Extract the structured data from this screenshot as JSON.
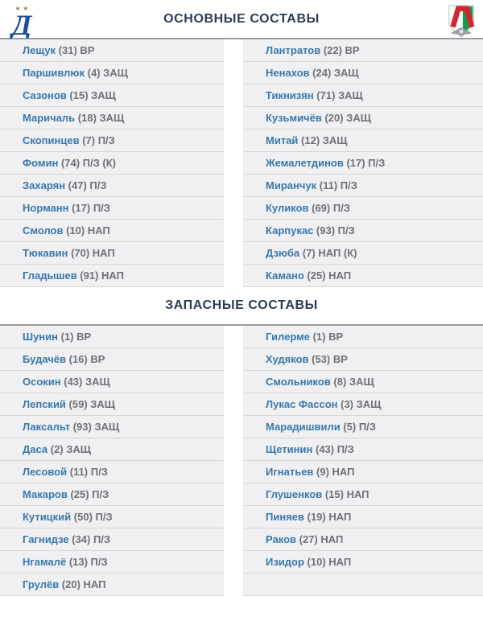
{
  "teams": {
    "home_logo_icon": "dynamo-moscow-logo",
    "away_logo_icon": "lokomotiv-moscow-logo"
  },
  "colors": {
    "player_name_blue": "#3878ad",
    "player_meta_gray": "#6e7176",
    "section_title_navy": "#2c3b53",
    "row_background": "#f0f0f2",
    "row_separator": "#d7d7da",
    "section_border": "#9b9b9e",
    "dynamo_blue": "#1d4e9b",
    "dynamo_star_gold": "#a5854f",
    "loko_red": "#d22730",
    "loko_green": "#149b4e",
    "loko_gray": "#9aa0a6"
  },
  "sections": [
    {
      "title": "ОСНОВНЫЕ СОСТАВЫ",
      "left_players": [
        {
          "name": "Лещук",
          "meta": "(31) ВР"
        },
        {
          "name": "Паршивлюк",
          "meta": "(4) ЗАЩ"
        },
        {
          "name": "Сазонов",
          "meta": "(15) ЗАЩ"
        },
        {
          "name": "Маричаль",
          "meta": "(18) ЗАЩ"
        },
        {
          "name": "Скопинцев",
          "meta": "(7) П/З"
        },
        {
          "name": "Фомин",
          "meta": "(74) П/З (К)"
        },
        {
          "name": "Захарян",
          "meta": "(47) П/З"
        },
        {
          "name": "Норманн",
          "meta": "(17) П/З"
        },
        {
          "name": "Смолов",
          "meta": "(10) НАП"
        },
        {
          "name": "Тюкавин",
          "meta": "(70) НАП"
        },
        {
          "name": "Гладышев",
          "meta": "(91) НАП"
        }
      ],
      "right_players": [
        {
          "name": "Лантратов",
          "meta": "(22) ВР"
        },
        {
          "name": "Ненахов",
          "meta": "(24) ЗАЩ"
        },
        {
          "name": "Тикнизян",
          "meta": "(71) ЗАЩ"
        },
        {
          "name": "Кузьмичёв",
          "meta": "(20) ЗАЩ"
        },
        {
          "name": "Митай",
          "meta": "(12) ЗАЩ"
        },
        {
          "name": "Жемалетдинов",
          "meta": "(17) П/З"
        },
        {
          "name": "Миранчук",
          "meta": "(11) П/З"
        },
        {
          "name": "Куликов",
          "meta": "(69) П/З"
        },
        {
          "name": "Карпукас",
          "meta": "(93) П/З"
        },
        {
          "name": "Дзюба",
          "meta": "(7) НАП (К)"
        },
        {
          "name": "Камано",
          "meta": "(25) НАП"
        }
      ]
    },
    {
      "title": "ЗАПАСНЫЕ СОСТАВЫ",
      "left_players": [
        {
          "name": "Шунин",
          "meta": "(1) ВР"
        },
        {
          "name": "Будачёв",
          "meta": "(16) ВР"
        },
        {
          "name": "Осокин",
          "meta": "(43) ЗАЩ"
        },
        {
          "name": "Лепский",
          "meta": "(59) ЗАЩ"
        },
        {
          "name": "Лаксальт",
          "meta": "(93) ЗАЩ"
        },
        {
          "name": "Даса",
          "meta": "(2) ЗАЩ"
        },
        {
          "name": "Лесовой",
          "meta": "(11) П/З"
        },
        {
          "name": "Макаров",
          "meta": "(25) П/З"
        },
        {
          "name": "Кутицкий",
          "meta": "(50) П/З"
        },
        {
          "name": "Гагнидзе",
          "meta": "(34) П/З"
        },
        {
          "name": "Нгамалё",
          "meta": "(13) П/З"
        },
        {
          "name": "Грулёв",
          "meta": "(20) НАП"
        }
      ],
      "right_players": [
        {
          "name": "Гилерме",
          "meta": "(1) ВР"
        },
        {
          "name": "Худяков",
          "meta": "(53) ВР"
        },
        {
          "name": "Смольников",
          "meta": "(8) ЗАЩ"
        },
        {
          "name": "Лукас Фассон",
          "meta": "(3) ЗАЩ"
        },
        {
          "name": "Марадишвили",
          "meta": "(5) П/З"
        },
        {
          "name": "Щетинин",
          "meta": "(43) П/З"
        },
        {
          "name": "Игнатьев",
          "meta": "(9) НАП"
        },
        {
          "name": "Глушенков",
          "meta": "(15) НАП"
        },
        {
          "name": "Пиняев",
          "meta": "(19) НАП"
        },
        {
          "name": "Раков",
          "meta": "(27) НАП"
        },
        {
          "name": "Изидор",
          "meta": "(10) НАП"
        },
        {
          "name": "",
          "meta": ""
        }
      ]
    }
  ]
}
